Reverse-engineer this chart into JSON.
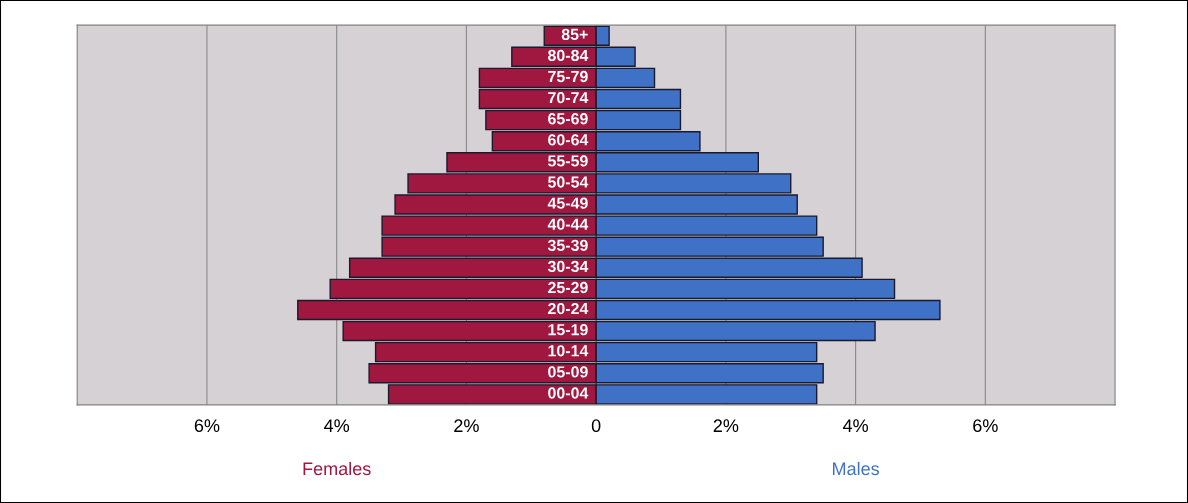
{
  "chart_data": {
    "type": "bar",
    "orientation": "horizontal",
    "stacked": true,
    "categories": [
      "85+",
      "80-84",
      "75-79",
      "70-74",
      "65-69",
      "60-64",
      "55-59",
      "50-54",
      "45-49",
      "40-44",
      "35-39",
      "30-34",
      "25-29",
      "20-24",
      "15-19",
      "10-14",
      "05-09",
      "00-04"
    ],
    "series": [
      {
        "name": "Females",
        "color": "#a01840",
        "values": [
          -0.8,
          -1.3,
          -1.8,
          -1.8,
          -1.7,
          -1.6,
          -2.3,
          -2.9,
          -3.1,
          -3.3,
          -3.3,
          -3.8,
          -4.1,
          -4.6,
          -3.9,
          -3.4,
          -3.5,
          -3.2
        ]
      },
      {
        "name": "Males",
        "color": "#3f72c6",
        "values": [
          0.2,
          0.6,
          0.9,
          1.3,
          1.3,
          1.6,
          2.5,
          3.0,
          3.1,
          3.4,
          3.5,
          4.1,
          4.6,
          5.3,
          4.3,
          3.4,
          3.5,
          3.4
        ]
      }
    ],
    "xlim": [
      -8,
      8
    ],
    "xticks": [
      {
        "value": -6,
        "label": "6%"
      },
      {
        "value": -4,
        "label": "4%"
      },
      {
        "value": -2,
        "label": "2%"
      },
      0,
      {
        "value": 2,
        "label": "2%"
      },
      {
        "value": 4,
        "label": "4%"
      },
      {
        "value": 6,
        "label": "6%"
      }
    ],
    "grid": "x",
    "legend": false
  }
}
